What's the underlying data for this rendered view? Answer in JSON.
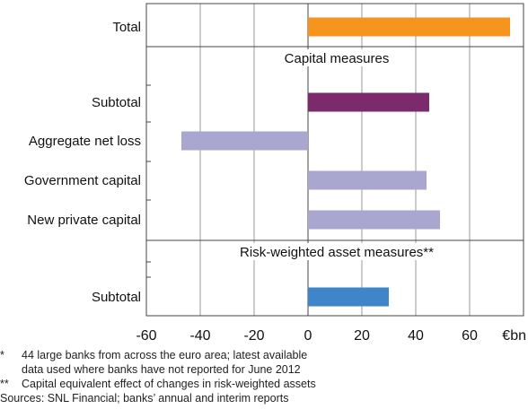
{
  "chart_data": {
    "type": "bar",
    "orientation": "horizontal",
    "xlim": [
      -60,
      80
    ],
    "x_ticks": [
      -60,
      -40,
      -20,
      0,
      20,
      40,
      60
    ],
    "x_tick_labels": [
      "-60",
      "-40",
      "-20",
      "0",
      "20",
      "40",
      "60"
    ],
    "x_unit_label": "€bn",
    "grid": true,
    "sections": [
      {
        "header": "",
        "rows": [
          {
            "label": "Total",
            "value": 75,
            "color": "#F7941D"
          }
        ]
      },
      {
        "header": "Capital measures",
        "rows": [
          {
            "label": "Subtotal",
            "value": 45,
            "color": "#7B2A6B"
          },
          {
            "label": "Aggregate net loss",
            "value": -47,
            "color": "#A9A6D0"
          },
          {
            "label": "Government capital",
            "value": 44,
            "color": "#A9A6D0"
          },
          {
            "label": "New private capital",
            "value": 49,
            "color": "#A9A6D0"
          }
        ]
      },
      {
        "header": "Risk-weighted asset measures**",
        "rows": [
          {
            "label": "Subtotal",
            "value": 30,
            "color": "#3E86C8"
          }
        ]
      }
    ]
  },
  "notes": [
    {
      "mark": "*",
      "lines": [
        "44 large banks from across the euro area; latest available",
        "data used where banks have not reported for June 2012"
      ]
    },
    {
      "mark": "**",
      "lines": [
        "Capital equivalent effect of changes in risk-weighted assets"
      ]
    }
  ],
  "sources": "Sources: SNL Financial; banks’ annual and interim reports"
}
